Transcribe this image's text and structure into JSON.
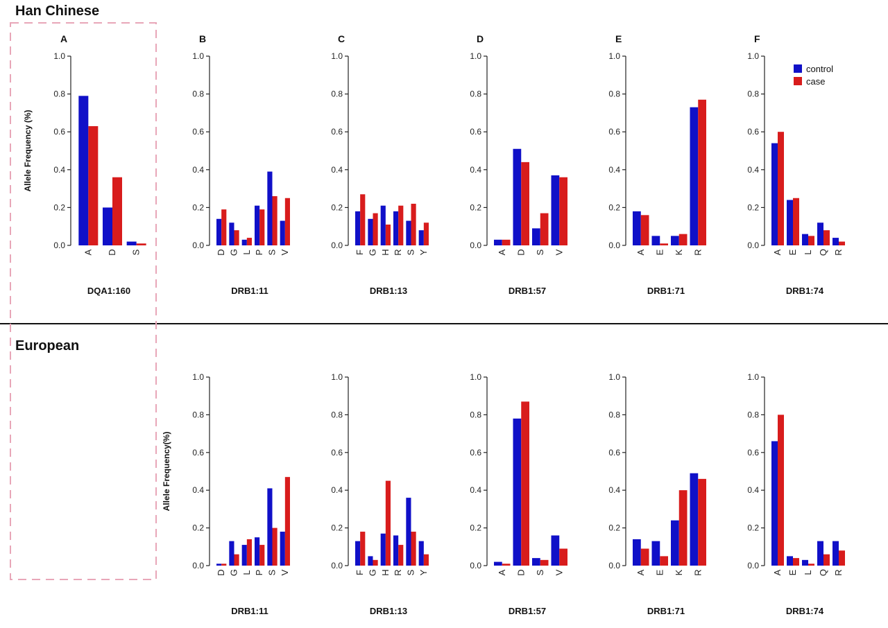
{
  "colors": {
    "control": "#1010c8",
    "case": "#d81c1c",
    "axis": "#222222",
    "divider": "#111111",
    "dashed_box": "#e8a6b8"
  },
  "sections": [
    {
      "title": "Han Chinese"
    },
    {
      "title": "European"
    }
  ],
  "legend": {
    "items": [
      {
        "key": "control",
        "label": "control"
      },
      {
        "key": "case",
        "label": "case"
      }
    ]
  },
  "chart_data": [
    {
      "type": "bar",
      "section": "Han Chinese",
      "letter": "A",
      "title": "DQA1:160",
      "ylabel": "Allele Frequency (%)",
      "ylim": [
        0,
        1.0
      ],
      "yticks": [
        "0.0",
        "0.2",
        "0.4",
        "0.6",
        "0.8",
        "1.0"
      ],
      "categories": [
        "A",
        "D",
        "S"
      ],
      "series": [
        {
          "name": "control",
          "values": [
            0.79,
            0.2,
            0.02
          ]
        },
        {
          "name": "case",
          "values": [
            0.63,
            0.36,
            0.01
          ]
        }
      ]
    },
    {
      "type": "bar",
      "section": "Han Chinese",
      "letter": "B",
      "title": "DRB1:11",
      "ylim": [
        0,
        1.0
      ],
      "yticks": [
        "0.0",
        "0.2",
        "0.4",
        "0.6",
        "0.8",
        "1.0"
      ],
      "categories": [
        "D",
        "G",
        "L",
        "P",
        "S",
        "V"
      ],
      "series": [
        {
          "name": "control",
          "values": [
            0.14,
            0.12,
            0.03,
            0.21,
            0.39,
            0.13
          ]
        },
        {
          "name": "case",
          "values": [
            0.19,
            0.08,
            0.04,
            0.19,
            0.26,
            0.25
          ]
        }
      ]
    },
    {
      "type": "bar",
      "section": "Han Chinese",
      "letter": "C",
      "title": "DRB1:13",
      "ylim": [
        0,
        1.0
      ],
      "yticks": [
        "0.0",
        "0.2",
        "0.4",
        "0.6",
        "0.8",
        "1.0"
      ],
      "categories": [
        "F",
        "G",
        "H",
        "R",
        "S",
        "Y"
      ],
      "series": [
        {
          "name": "control",
          "values": [
            0.18,
            0.14,
            0.21,
            0.18,
            0.13,
            0.08
          ]
        },
        {
          "name": "case",
          "values": [
            0.27,
            0.17,
            0.11,
            0.21,
            0.22,
            0.12
          ]
        }
      ]
    },
    {
      "type": "bar",
      "section": "Han Chinese",
      "letter": "D",
      "title": "DRB1:57",
      "ylim": [
        0,
        1.0
      ],
      "yticks": [
        "0.0",
        "0.2",
        "0.4",
        "0.6",
        "0.8",
        "1.0"
      ],
      "categories": [
        "A",
        "D",
        "S",
        "V"
      ],
      "series": [
        {
          "name": "control",
          "values": [
            0.03,
            0.51,
            0.09,
            0.37
          ]
        },
        {
          "name": "case",
          "values": [
            0.03,
            0.44,
            0.17,
            0.36
          ]
        }
      ]
    },
    {
      "type": "bar",
      "section": "Han Chinese",
      "letter": "E",
      "title": "DRB1:71",
      "ylim": [
        0,
        1.0
      ],
      "yticks": [
        "0.0",
        "0.2",
        "0.4",
        "0.6",
        "0.8",
        "1.0"
      ],
      "categories": [
        "A",
        "E",
        "K",
        "R"
      ],
      "series": [
        {
          "name": "control",
          "values": [
            0.18,
            0.05,
            0.05,
            0.73
          ]
        },
        {
          "name": "case",
          "values": [
            0.16,
            0.01,
            0.06,
            0.77
          ]
        }
      ]
    },
    {
      "type": "bar",
      "section": "Han Chinese",
      "letter": "F",
      "title": "DRB1:74",
      "legend": "top-right",
      "ylim": [
        0,
        1.0
      ],
      "yticks": [
        "0.0",
        "0.2",
        "0.4",
        "0.6",
        "0.8",
        "1.0"
      ],
      "categories": [
        "A",
        "E",
        "L",
        "Q",
        "R"
      ],
      "series": [
        {
          "name": "control",
          "values": [
            0.54,
            0.24,
            0.06,
            0.12,
            0.04
          ]
        },
        {
          "name": "case",
          "values": [
            0.6,
            0.25,
            0.05,
            0.08,
            0.02
          ]
        }
      ]
    },
    {
      "type": "bar",
      "section": "European",
      "title": "DRB1:11",
      "ylabel": "Allele Frequency(%)",
      "ylim": [
        0,
        1.0
      ],
      "yticks": [
        "0.0",
        "0.2",
        "0.4",
        "0.6",
        "0.8",
        "1.0"
      ],
      "categories": [
        "D",
        "G",
        "L",
        "P",
        "S",
        "V"
      ],
      "series": [
        {
          "name": "control",
          "values": [
            0.01,
            0.13,
            0.11,
            0.15,
            0.41,
            0.18
          ]
        },
        {
          "name": "case",
          "values": [
            0.01,
            0.06,
            0.14,
            0.11,
            0.2,
            0.47
          ]
        }
      ]
    },
    {
      "type": "bar",
      "section": "European",
      "title": "DRB1:13",
      "ylim": [
        0,
        1.0
      ],
      "yticks": [
        "0.0",
        "0.2",
        "0.4",
        "0.6",
        "0.8",
        "1.0"
      ],
      "categories": [
        "F",
        "G",
        "H",
        "R",
        "S",
        "Y"
      ],
      "series": [
        {
          "name": "control",
          "values": [
            0.13,
            0.05,
            0.17,
            0.16,
            0.36,
            0.13
          ]
        },
        {
          "name": "case",
          "values": [
            0.18,
            0.03,
            0.45,
            0.11,
            0.18,
            0.06
          ]
        }
      ]
    },
    {
      "type": "bar",
      "section": "European",
      "title": "DRB1:57",
      "ylim": [
        0,
        1.0
      ],
      "yticks": [
        "0.0",
        "0.2",
        "0.4",
        "0.6",
        "0.8",
        "1.0"
      ],
      "categories": [
        "A",
        "D",
        "S",
        "V"
      ],
      "series": [
        {
          "name": "control",
          "values": [
            0.02,
            0.78,
            0.04,
            0.16
          ]
        },
        {
          "name": "case",
          "values": [
            0.01,
            0.87,
            0.03,
            0.09
          ]
        }
      ]
    },
    {
      "type": "bar",
      "section": "European",
      "title": "DRB1:71",
      "ylim": [
        0,
        1.0
      ],
      "yticks": [
        "0.0",
        "0.2",
        "0.4",
        "0.6",
        "0.8",
        "1.0"
      ],
      "categories": [
        "A",
        "E",
        "K",
        "R"
      ],
      "series": [
        {
          "name": "control",
          "values": [
            0.14,
            0.13,
            0.24,
            0.49
          ]
        },
        {
          "name": "case",
          "values": [
            0.09,
            0.05,
            0.4,
            0.46
          ]
        }
      ]
    },
    {
      "type": "bar",
      "section": "European",
      "title": "DRB1:74",
      "ylim": [
        0,
        1.0
      ],
      "yticks": [
        "0.0",
        "0.2",
        "0.4",
        "0.6",
        "0.8",
        "1.0"
      ],
      "categories": [
        "A",
        "E",
        "L",
        "Q",
        "R"
      ],
      "series": [
        {
          "name": "control",
          "values": [
            0.66,
            0.05,
            0.03,
            0.13,
            0.13
          ]
        },
        {
          "name": "case",
          "values": [
            0.8,
            0.04,
            0.01,
            0.06,
            0.08
          ]
        }
      ]
    }
  ]
}
